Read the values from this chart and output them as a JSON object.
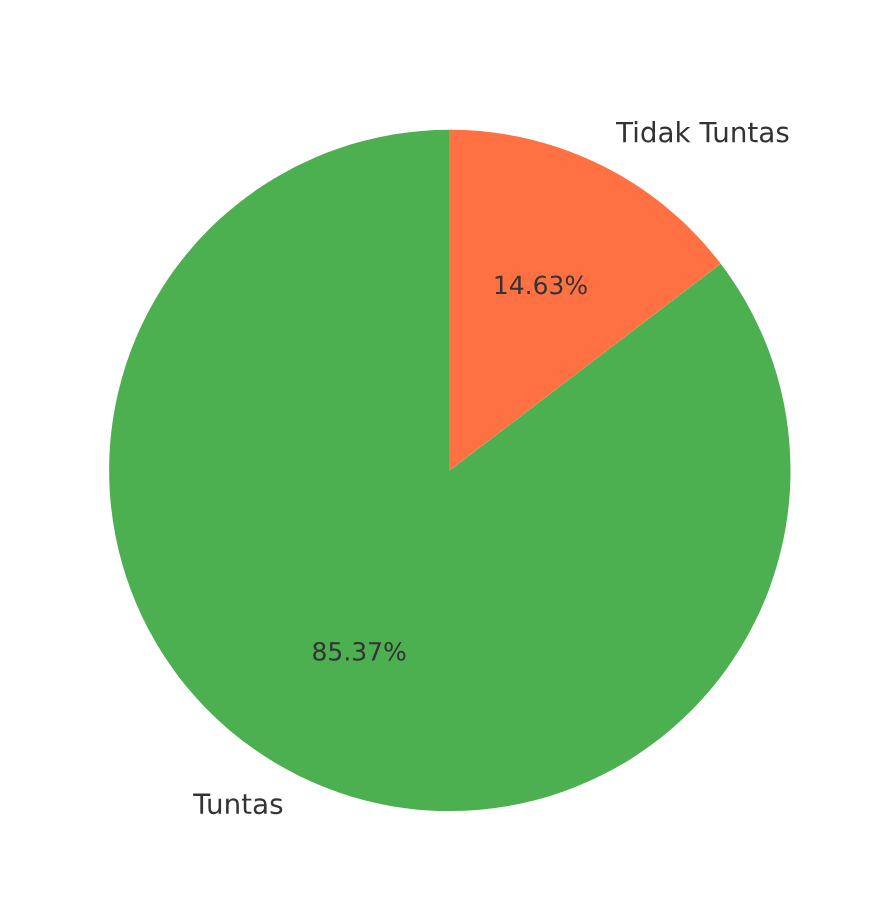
{
  "chart_data": {
    "type": "pie",
    "categories": [
      "Tidak Tuntas",
      "Tuntas"
    ],
    "values": [
      14.63,
      85.37
    ],
    "colors": [
      "#ff7043",
      "#4caf50"
    ],
    "value_labels": [
      "14.63%",
      "85.37%"
    ]
  }
}
